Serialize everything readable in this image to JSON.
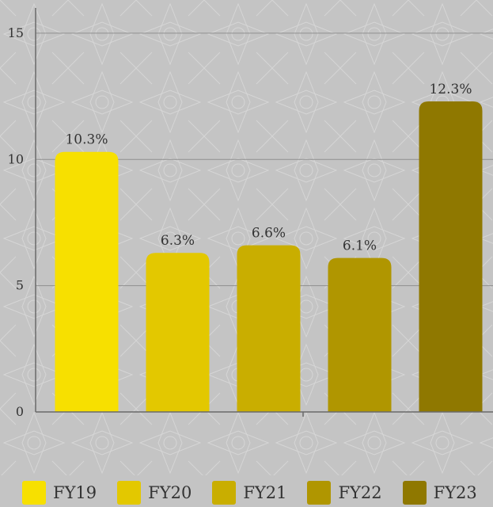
{
  "chart_data": {
    "type": "bar",
    "categories": [
      "FY19",
      "FY20",
      "FY21",
      "FY22",
      "FY23"
    ],
    "values": [
      10.3,
      6.3,
      6.6,
      6.1,
      12.3
    ],
    "data_labels": [
      "10.3%",
      "6.3%",
      "6.6%",
      "6.1%",
      "12.3%"
    ],
    "colors": [
      "#f7e000",
      "#e3c800",
      "#c9ae00",
      "#b09600",
      "#8f7800"
    ],
    "ylim": [
      0,
      16
    ],
    "yticks": [
      0,
      5,
      10,
      15
    ],
    "ytick_labels": [
      "0",
      "5",
      "10",
      "15"
    ],
    "grid": true,
    "legend_position": "bottom",
    "legend": [
      "FY19",
      "FY20",
      "FY21",
      "FY22",
      "FY23"
    ],
    "background_color": "#c4c4c4"
  }
}
